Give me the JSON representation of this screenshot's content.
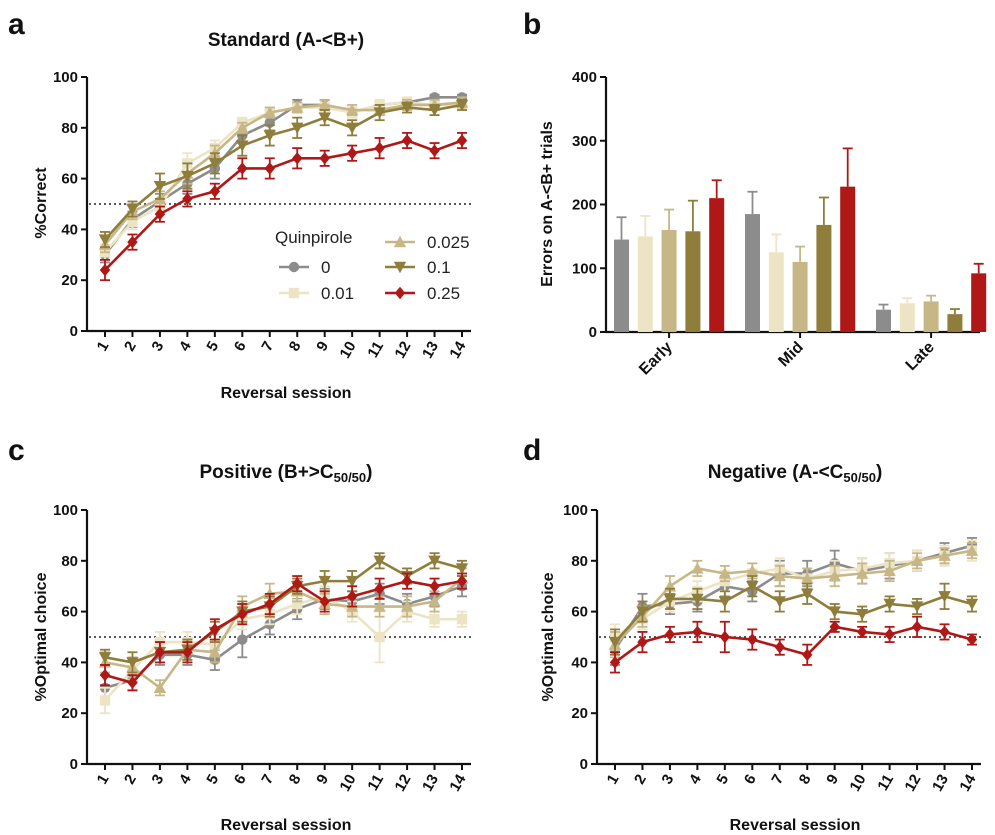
{
  "colors": {
    "0": "#8c8c8c",
    "0.01": "#ece4c4",
    "0.025": "#c8b786",
    "0.1": "#8f7d3b",
    "0.25": "#b01717"
  },
  "chart_data": [
    {
      "id": "a",
      "panel_label": "a",
      "type": "line",
      "title": "Standard (A-<B+)",
      "xlabel": "Reversal session",
      "ylabel": "%Correct",
      "x": [
        1,
        2,
        3,
        4,
        5,
        6,
        7,
        8,
        9,
        10,
        11,
        12,
        13,
        14
      ],
      "ylim": [
        0,
        100
      ],
      "yticks": [
        0,
        20,
        40,
        60,
        80,
        100
      ],
      "chance_line": 50,
      "legend": {
        "title": "Quinpirole",
        "placement": "bottom-right"
      },
      "series": [
        {
          "name": "0",
          "marker": "circle",
          "values": [
            30,
            44,
            51,
            58,
            64,
            77,
            82,
            89,
            89,
            86,
            89,
            90,
            92,
            92
          ],
          "errors": [
            3,
            3,
            3,
            4,
            4,
            3,
            3,
            2,
            2,
            2,
            1,
            1,
            1,
            1
          ]
        },
        {
          "name": "0.01",
          "marker": "square",
          "values": [
            31,
            43,
            49,
            66,
            72,
            82,
            86,
            88,
            88,
            86,
            89,
            90,
            89,
            89
          ],
          "errors": [
            3,
            3,
            3,
            4,
            3,
            2,
            2,
            2,
            2,
            2,
            2,
            2,
            2,
            2
          ]
        },
        {
          "name": "0.025",
          "marker": "triangle-up",
          "values": [
            34,
            47,
            52,
            62,
            70,
            80,
            86,
            88,
            89,
            87,
            87,
            89,
            89,
            90
          ],
          "errors": [
            3,
            3,
            3,
            4,
            3,
            2,
            2,
            2,
            2,
            2,
            2,
            2,
            2,
            2
          ]
        },
        {
          "name": "0.1",
          "marker": "triangle-down",
          "values": [
            36,
            48,
            57,
            61,
            66,
            73,
            77,
            80,
            84,
            80,
            86,
            88,
            87,
            89
          ],
          "errors": [
            3,
            3,
            5,
            5,
            4,
            4,
            4,
            4,
            3,
            3,
            3,
            2,
            2,
            2
          ]
        },
        {
          "name": "0.25",
          "marker": "diamond",
          "values": [
            24,
            35,
            46,
            52,
            55,
            64,
            64,
            68,
            68,
            70,
            72,
            75,
            71,
            75
          ],
          "errors": [
            4,
            3,
            3,
            3,
            3,
            4,
            4,
            4,
            3,
            3,
            4,
            3,
            3,
            3
          ]
        }
      ]
    },
    {
      "id": "b",
      "panel_label": "b",
      "type": "bar",
      "title": "",
      "xlabel": "",
      "ylabel": "Errors on A-<B+ trials",
      "categories": [
        "Early",
        "Mid",
        "Late"
      ],
      "ylim": [
        0,
        400
      ],
      "yticks": [
        0,
        100,
        200,
        300,
        400
      ],
      "series": [
        {
          "name": "0",
          "values": [
            145,
            185,
            35
          ],
          "errors": [
            35,
            35,
            8
          ]
        },
        {
          "name": "0.01",
          "values": [
            150,
            125,
            45
          ],
          "errors": [
            32,
            28,
            8
          ]
        },
        {
          "name": "0.025",
          "values": [
            160,
            110,
            48
          ],
          "errors": [
            32,
            24,
            9
          ]
        },
        {
          "name": "0.1",
          "values": [
            158,
            168,
            28
          ],
          "errors": [
            48,
            43,
            8
          ]
        },
        {
          "name": "0.25",
          "values": [
            210,
            228,
            92
          ],
          "errors": [
            28,
            60,
            15
          ]
        }
      ]
    },
    {
      "id": "c",
      "panel_label": "c",
      "type": "line",
      "title_main": "Positive (B+>C",
      "title_sub": "50/50",
      "title_end": ")",
      "xlabel": "Reversal session",
      "ylabel": "%Optimal choice",
      "x": [
        1,
        2,
        3,
        4,
        5,
        6,
        7,
        8,
        9,
        10,
        11,
        12,
        13,
        14
      ],
      "ylim": [
        0,
        100
      ],
      "yticks": [
        0,
        20,
        40,
        60,
        80,
        100
      ],
      "chance_line": 50,
      "series": [
        {
          "name": "0",
          "marker": "circle",
          "values": [
            30,
            33,
            43,
            43,
            41,
            49,
            55,
            61,
            65,
            64,
            67,
            63,
            66,
            70
          ],
          "errors": [
            5,
            4,
            4,
            4,
            4,
            7,
            4,
            4,
            4,
            4,
            4,
            4,
            4,
            4
          ]
        },
        {
          "name": "0.01",
          "marker": "square",
          "values": [
            25,
            37,
            48,
            48,
            47,
            57,
            59,
            63,
            66,
            60,
            50,
            60,
            57,
            57
          ],
          "errors": [
            5,
            4,
            4,
            4,
            4,
            4,
            4,
            4,
            4,
            4,
            10,
            4,
            3,
            3
          ]
        },
        {
          "name": "0.025",
          "marker": "triangle-up",
          "values": [
            40,
            38,
            30,
            45,
            44,
            62,
            67,
            68,
            63,
            62,
            62,
            62,
            64,
            73
          ],
          "errors": [
            4,
            4,
            3,
            4,
            4,
            4,
            4,
            4,
            4,
            4,
            4,
            4,
            4,
            4
          ]
        },
        {
          "name": "0.1",
          "marker": "triangle-down",
          "values": [
            42,
            40,
            44,
            45,
            52,
            60,
            62,
            70,
            72,
            72,
            80,
            74,
            80,
            77
          ],
          "errors": [
            3,
            4,
            4,
            4,
            4,
            4,
            4,
            3,
            4,
            4,
            3,
            3,
            3,
            3
          ]
        },
        {
          "name": "0.25",
          "marker": "diamond",
          "values": [
            35,
            32,
            44,
            44,
            53,
            59,
            63,
            71,
            64,
            66,
            69,
            72,
            70,
            72
          ],
          "errors": [
            4,
            3,
            4,
            4,
            4,
            4,
            4,
            3,
            4,
            4,
            4,
            3,
            3,
            3
          ]
        }
      ]
    },
    {
      "id": "d",
      "panel_label": "d",
      "type": "line",
      "title_main": "Negative (A-<C",
      "title_sub": "50/50",
      "title_end": ")",
      "xlabel": "Reversal session",
      "ylabel": "%Optimal choice",
      "x": [
        1,
        2,
        3,
        4,
        5,
        6,
        7,
        8,
        9,
        10,
        11,
        12,
        13,
        14
      ],
      "ylim": [
        0,
        100
      ],
      "yticks": [
        0,
        20,
        40,
        60,
        80,
        100
      ],
      "chance_line": 50,
      "series": [
        {
          "name": "0",
          "marker": "circle",
          "values": [
            45,
            62,
            63,
            64,
            70,
            68,
            75,
            75,
            79,
            76,
            78,
            80,
            83,
            86
          ],
          "errors": [
            6,
            5,
            4,
            4,
            4,
            4,
            5,
            5,
            5,
            5,
            5,
            4,
            4,
            3
          ]
        },
        {
          "name": "0.01",
          "marker": "square",
          "values": [
            50,
            57,
            64,
            68,
            72,
            75,
            77,
            73,
            76,
            77,
            79,
            80,
            82,
            84
          ],
          "errors": [
            5,
            4,
            4,
            4,
            4,
            4,
            4,
            4,
            4,
            4,
            4,
            4,
            4,
            4
          ]
        },
        {
          "name": "0.025",
          "marker": "triangle-up",
          "values": [
            47,
            58,
            70,
            77,
            75,
            76,
            74,
            73,
            74,
            75,
            76,
            80,
            82,
            84
          ],
          "errors": [
            5,
            4,
            4,
            3,
            3,
            3,
            4,
            4,
            4,
            4,
            4,
            3,
            3,
            3
          ]
        },
        {
          "name": "0.1",
          "marker": "triangle-down",
          "values": [
            48,
            60,
            65,
            65,
            64,
            70,
            64,
            67,
            60,
            59,
            63,
            62,
            66,
            63
          ],
          "errors": [
            5,
            4,
            4,
            4,
            4,
            4,
            4,
            4,
            3,
            3,
            3,
            3,
            5,
            3
          ]
        },
        {
          "name": "0.25",
          "marker": "diamond",
          "values": [
            40,
            48,
            51,
            52,
            50,
            49,
            46,
            43,
            54,
            52,
            51,
            54,
            52,
            49
          ],
          "errors": [
            4,
            4,
            3,
            4,
            6,
            4,
            3,
            4,
            2,
            2,
            3,
            4,
            3,
            2
          ]
        }
      ]
    }
  ]
}
